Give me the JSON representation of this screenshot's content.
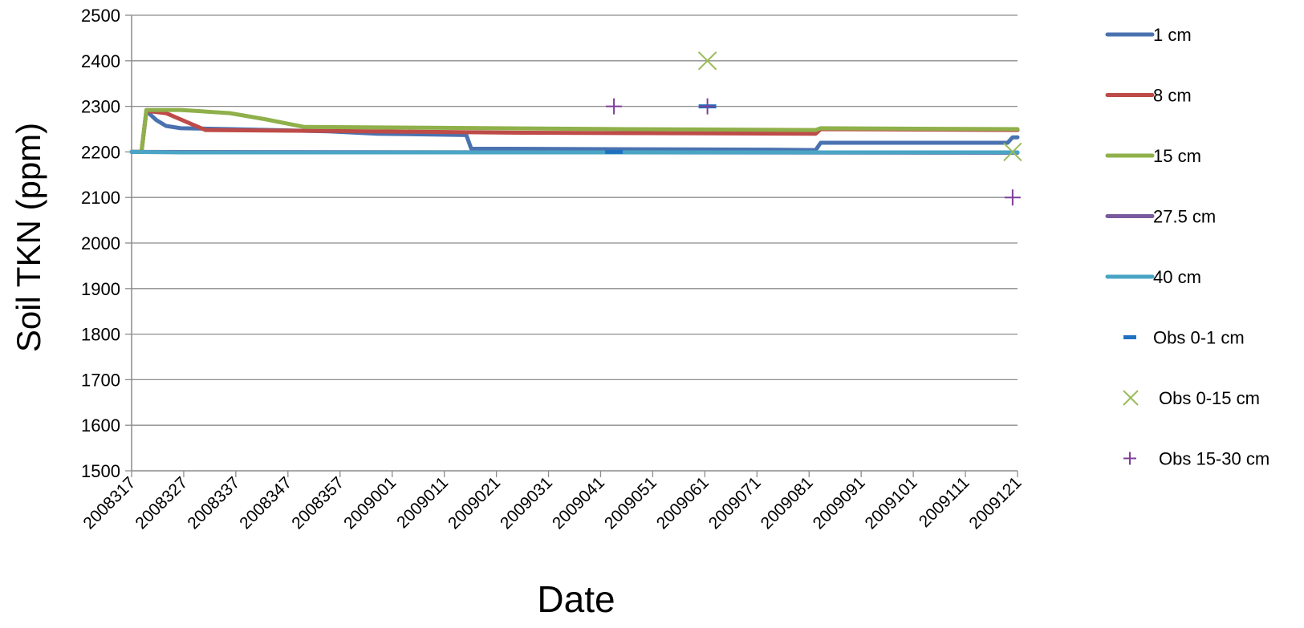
{
  "chart_data": {
    "type": "line",
    "title": "",
    "xlabel": "Date",
    "ylabel": "Soil TKN (ppm)",
    "ylim": [
      1500,
      2500
    ],
    "yticks": [
      1500,
      1600,
      1700,
      1800,
      1900,
      2000,
      2100,
      2200,
      2300,
      2400,
      2500
    ],
    "xticks": [
      "2008317",
      "2008327",
      "2008337",
      "2008347",
      "2008357",
      "2009001",
      "2009011",
      "2009021",
      "2009031",
      "2009041",
      "2009051",
      "2009061",
      "2009071",
      "2009081",
      "2009091",
      "2009101",
      "2009111",
      "2009121"
    ],
    "grid": "horizontal",
    "legend_position": "right",
    "series": [
      {
        "name": "1 cm",
        "kind": "line",
        "color": "#4a72b0",
        "points": [
          [
            0,
            2200
          ],
          [
            2,
            2200
          ],
          [
            3,
            2290
          ],
          [
            5,
            2270
          ],
          [
            7,
            2257
          ],
          [
            10,
            2252
          ],
          [
            20,
            2250
          ],
          [
            40,
            2245
          ],
          [
            50,
            2240
          ],
          [
            68,
            2237
          ],
          [
            69,
            2207
          ],
          [
            130,
            2205
          ],
          [
            139,
            2204
          ],
          [
            140,
            2220
          ],
          [
            178,
            2220
          ],
          [
            179,
            2232
          ],
          [
            180,
            2232
          ]
        ]
      },
      {
        "name": "8 cm",
        "kind": "line",
        "color": "#be4b48",
        "points": [
          [
            0,
            2200
          ],
          [
            2,
            2200
          ],
          [
            3,
            2290
          ],
          [
            7,
            2285
          ],
          [
            15,
            2248
          ],
          [
            40,
            2246
          ],
          [
            80,
            2242
          ],
          [
            139,
            2240
          ],
          [
            140,
            2250
          ],
          [
            180,
            2248
          ]
        ]
      },
      {
        "name": "15 cm",
        "kind": "line",
        "color": "#8fb04a",
        "points": [
          [
            0,
            2200
          ],
          [
            2,
            2200
          ],
          [
            3,
            2292
          ],
          [
            10,
            2292
          ],
          [
            20,
            2285
          ],
          [
            27,
            2272
          ],
          [
            35,
            2255
          ],
          [
            60,
            2253
          ],
          [
            100,
            2250
          ],
          [
            139,
            2248
          ],
          [
            140,
            2252
          ],
          [
            180,
            2250
          ]
        ]
      },
      {
        "name": "27.5 cm",
        "kind": "line",
        "color": "#7a5a9e",
        "points": [
          [
            0,
            2200
          ],
          [
            180,
            2198
          ]
        ]
      },
      {
        "name": "40 cm",
        "kind": "line",
        "color": "#4aa5c5",
        "points": [
          [
            0,
            2200
          ],
          [
            10,
            2199
          ],
          [
            180,
            2199
          ]
        ]
      },
      {
        "name": "Obs 0-1 cm",
        "kind": "dash",
        "color": "#1f72c2",
        "points": [
          [
            98,
            2200
          ],
          [
            117,
            2300
          ]
        ]
      },
      {
        "name": "Obs 0-15 cm",
        "kind": "x",
        "color": "#9bbb59",
        "points": [
          [
            117,
            2400
          ],
          [
            179,
            2200
          ]
        ]
      },
      {
        "name": "Obs 15-30 cm",
        "kind": "plus",
        "color": "#7f3f98",
        "points": [
          [
            98,
            2300
          ],
          [
            117,
            2300
          ],
          [
            179,
            2100
          ]
        ]
      }
    ]
  }
}
